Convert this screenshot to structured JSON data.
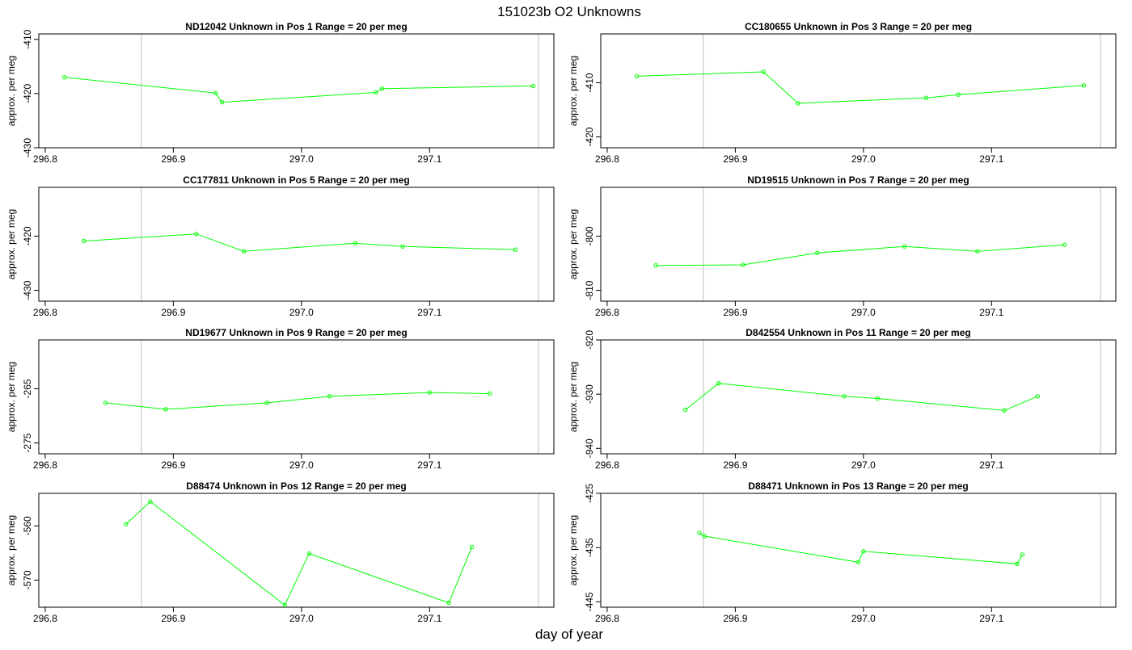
{
  "title": "151023b  O2 Unknowns",
  "xlabel": "day of year",
  "colors": {
    "line": "#00ff00",
    "vline": "#bebebe",
    "axis": "#000000"
  },
  "chart_data": [
    {
      "type": "line",
      "title": "ND12042    Unknown in Pos 1         Range = 20 per meg",
      "ylabel": "approx. per meg",
      "xlim": [
        296.795,
        297.197
      ],
      "ylim": [
        -430,
        -409
      ],
      "y_reversed": true,
      "xticks": [
        "296.8",
        "296.9",
        "297.0",
        "297.1"
      ],
      "yticks": [
        "-410",
        "-420",
        "-430"
      ],
      "vlines": [
        296.875,
        297.185
      ],
      "x": [
        296.815,
        296.933,
        296.938,
        297.058,
        297.063,
        297.181
      ],
      "y": [
        -417.0,
        -419.9,
        -421.6,
        -419.8,
        -419.1,
        -418.6
      ]
    },
    {
      "type": "line",
      "title": "CC180655    Unknown in Pos 3         Range = 20 per meg",
      "ylabel": "approx. per meg",
      "xlim": [
        296.795,
        297.197
      ],
      "ylim": [
        -422,
        -401
      ],
      "y_reversed": true,
      "xticks": [
        "296.8",
        "296.9",
        "297.0",
        "297.1"
      ],
      "yticks": [
        "-410",
        "-420"
      ],
      "vlines": [
        296.875,
        297.185
      ],
      "x": [
        296.823,
        296.922,
        296.949,
        297.049,
        297.074,
        297.172
      ],
      "y": [
        -408.8,
        -408.0,
        -413.8,
        -412.8,
        -412.2,
        -410.5
      ]
    },
    {
      "type": "line",
      "title": "CC177811    Unknown in Pos 5         Range = 20 per meg",
      "ylabel": "approx. per meg",
      "xlim": [
        296.795,
        297.197
      ],
      "ylim": [
        -432,
        -411
      ],
      "y_reversed": true,
      "xticks": [
        "296.8",
        "296.9",
        "297.0",
        "297.1"
      ],
      "yticks": [
        "-420",
        "-430"
      ],
      "vlines": [
        296.875,
        297.185
      ],
      "x": [
        296.83,
        296.918,
        296.955,
        297.042,
        297.079,
        297.167
      ],
      "y": [
        -420.9,
        -419.6,
        -422.8,
        -421.3,
        -421.9,
        -422.5
      ]
    },
    {
      "type": "line",
      "title": "ND19515    Unknown in Pos 7         Range = 20 per meg",
      "ylabel": "approx. per meg",
      "xlim": [
        296.795,
        297.197
      ],
      "ylim": [
        -812,
        -791
      ],
      "y_reversed": true,
      "xticks": [
        "296.8",
        "296.9",
        "297.0",
        "297.1"
      ],
      "yticks": [
        "-800",
        "-810"
      ],
      "vlines": [
        296.875,
        297.185
      ],
      "x": [
        296.838,
        296.906,
        296.964,
        297.032,
        297.089,
        297.157
      ],
      "y": [
        -805.4,
        -805.3,
        -803.1,
        -801.9,
        -802.8,
        -801.6
      ]
    },
    {
      "type": "line",
      "title": "ND19677    Unknown in Pos 9         Range = 20 per meg",
      "ylabel": "approx. per meg",
      "xlim": [
        296.795,
        297.197
      ],
      "ylim": [
        -277,
        -256
      ],
      "y_reversed": true,
      "xticks": [
        "296.8",
        "296.9",
        "297.0",
        "297.1"
      ],
      "yticks": [
        "-265",
        "-275"
      ],
      "vlines": [
        296.875,
        297.185
      ],
      "x": [
        296.847,
        296.894,
        296.973,
        297.022,
        297.1,
        297.147
      ],
      "y": [
        -267.6,
        -268.8,
        -267.6,
        -266.4,
        -265.7,
        -265.9
      ]
    },
    {
      "type": "line",
      "title": "D842554    Unknown in Pos 11         Range = 20 per meg",
      "ylabel": "approx. per meg",
      "xlim": [
        296.795,
        297.197
      ],
      "ylim": [
        -941,
        -920
      ],
      "y_reversed": true,
      "xticks": [
        "296.8",
        "296.9",
        "297.0",
        "297.1"
      ],
      "yticks": [
        "-920",
        "-930",
        "-940"
      ],
      "vlines": [
        296.875,
        297.185
      ],
      "x": [
        296.861,
        296.887,
        296.985,
        297.011,
        297.11,
        297.136
      ],
      "y": [
        -932.9,
        -928.0,
        -930.4,
        -930.8,
        -933.0,
        -930.4
      ]
    },
    {
      "type": "line",
      "title": "D88474    Unknown in Pos 12         Range = 20 per meg",
      "ylabel": "approx. per meg",
      "xlim": [
        296.795,
        297.197
      ],
      "ylim": [
        -575,
        -554
      ],
      "y_reversed": true,
      "xticks": [
        "296.8",
        "296.9",
        "297.0",
        "297.1"
      ],
      "yticks": [
        "-560",
        "-570"
      ],
      "vlines": [
        296.875,
        297.185
      ],
      "x": [
        296.863,
        296.882,
        296.987,
        297.006,
        297.115,
        297.133
      ],
      "y": [
        -559.7,
        -555.5,
        -574.6,
        -565.1,
        -574.2,
        -563.9
      ]
    },
    {
      "type": "line",
      "title": "D88471    Unknown in Pos 13         Range = 20 per meg",
      "ylabel": "approx. per meg",
      "xlim": [
        296.795,
        297.197
      ],
      "ylim": [
        -446,
        -425
      ],
      "y_reversed": true,
      "xticks": [
        "296.8",
        "296.9",
        "297.0",
        "297.1"
      ],
      "yticks": [
        "-425",
        "-435",
        "-445"
      ],
      "vlines": [
        296.875,
        297.185
      ],
      "x": [
        296.872,
        296.876,
        296.996,
        297.0,
        297.12,
        297.124
      ],
      "y": [
        -432.3,
        -432.9,
        -437.7,
        -435.7,
        -438.0,
        -436.3
      ]
    }
  ]
}
